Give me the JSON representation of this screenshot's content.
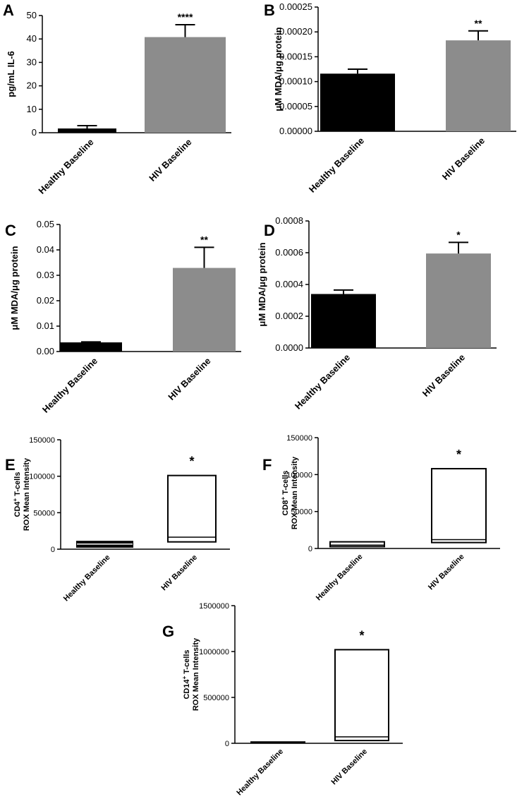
{
  "chart_data": [
    {
      "id": "A",
      "panel_letter": "A",
      "type": "bar",
      "categories": [
        "Healthy Baseline",
        "HIV Baseline"
      ],
      "values": [
        1.8,
        40.8
      ],
      "errors": [
        1.2,
        5.3
      ],
      "colors": [
        "#000000",
        "#8c8c8c"
      ],
      "ylabel": "pg/mL IL-6",
      "ylim": [
        0,
        50
      ],
      "ticks": [
        0,
        10,
        20,
        30,
        40,
        50
      ],
      "tick_labels": [
        "0",
        "10",
        "20",
        "30",
        "40",
        "50"
      ],
      "significance": [
        "",
        "****"
      ]
    },
    {
      "id": "B",
      "panel_letter": "B",
      "type": "bar",
      "categories": [
        "Healthy Baseline",
        "HIV Baseline"
      ],
      "values": [
        0.000116,
        0.000183
      ],
      "errors": [
        9e-06,
        1.9e-05
      ],
      "colors": [
        "#000000",
        "#8c8c8c"
      ],
      "ylabel": "μM MDA/μg protein",
      "ylim": [
        0,
        0.00025
      ],
      "ticks": [
        0,
        5e-05,
        0.0001,
        0.00015,
        0.0002,
        0.00025
      ],
      "tick_labels": [
        "0.00000",
        "0.00005",
        "0.00010",
        "0.00015",
        "0.00020",
        "0.00025"
      ],
      "significance": [
        "",
        "**"
      ]
    },
    {
      "id": "C",
      "panel_letter": "C",
      "type": "bar",
      "categories": [
        "Healthy Baseline",
        "HIV Baseline"
      ],
      "values": [
        0.0036,
        0.0329
      ],
      "errors": [
        0.0002,
        0.0081
      ],
      "colors": [
        "#000000",
        "#8c8c8c"
      ],
      "ylabel": "μM MDA/μg protein",
      "ylim": [
        0,
        0.05
      ],
      "ticks": [
        0,
        0.01,
        0.02,
        0.03,
        0.04,
        0.05
      ],
      "tick_labels": [
        "0.00",
        "0.01",
        "0.02",
        "0.03",
        "0.04",
        "0.05"
      ],
      "significance": [
        "",
        "**"
      ]
    },
    {
      "id": "D",
      "panel_letter": "D",
      "type": "bar",
      "categories": [
        "Healthy Baseline",
        "HIV Baseline"
      ],
      "values": [
        0.00034,
        0.000595
      ],
      "errors": [
        2.5e-05,
        7e-05
      ],
      "colors": [
        "#000000",
        "#8c8c8c"
      ],
      "ylabel": "μM MDA/μg protein",
      "ylim": [
        0,
        0.0008
      ],
      "ticks": [
        0,
        0.0002,
        0.0004,
        0.0006,
        0.0008
      ],
      "tick_labels": [
        "0.0000",
        "0.0002",
        "0.0004",
        "0.0006",
        "0.0008"
      ],
      "significance": [
        "",
        "*"
      ]
    },
    {
      "id": "E",
      "panel_letter": "E",
      "type": "box",
      "categories": [
        "Healthy Baseline",
        "HIV Baseline"
      ],
      "boxes": [
        {
          "min": 3000,
          "median": 7000,
          "max": 10500,
          "filled": true
        },
        {
          "min": 10000,
          "median": 16500,
          "max": 101000,
          "filled": false
        }
      ],
      "ylabel_line1": "CD4",
      "ylabel_sup": "+",
      "ylabel_line1_rest": " T-cells",
      "ylabel_line2": "ROX  Mean  Intensity",
      "ylim": [
        0,
        150000
      ],
      "ticks": [
        0,
        50000,
        100000,
        150000
      ],
      "tick_labels": [
        "0",
        "50000",
        "100000",
        "150000"
      ],
      "significance": [
        "",
        "*"
      ]
    },
    {
      "id": "F",
      "panel_letter": "F",
      "type": "box",
      "categories": [
        "Healthy Baseline",
        "HIV Baseline"
      ],
      "boxes": [
        {
          "min": 2500,
          "median": 4500,
          "max": 9000,
          "filled": false
        },
        {
          "min": 8000,
          "median": 12000,
          "max": 108000,
          "filled": false
        }
      ],
      "ylabel_line1": "CD8",
      "ylabel_sup": "+",
      "ylabel_line1_rest": " T-cells",
      "ylabel_line2": "ROX  Mean  Intensity",
      "ylim": [
        0,
        150000
      ],
      "ticks": [
        0,
        50000,
        100000,
        150000
      ],
      "tick_labels": [
        "0",
        "50000",
        "100000",
        "150000"
      ],
      "significance": [
        "",
        "*"
      ]
    },
    {
      "id": "G",
      "panel_letter": "G",
      "type": "box",
      "categories": [
        "Healthy Baseline",
        "HIV Baseline"
      ],
      "boxes": [
        {
          "min": 5000,
          "median": 9000,
          "max": 14000,
          "filled": false
        },
        {
          "min": 30000,
          "median": 70000,
          "max": 1020000,
          "filled": false
        }
      ],
      "ylabel_line1": "CD14",
      "ylabel_sup": "+",
      "ylabel_line1_rest": " T-cells",
      "ylabel_line2": "ROX  Mean  Intensity",
      "ylim": [
        0,
        1500000
      ],
      "ticks": [
        0,
        500000,
        1000000,
        1500000
      ],
      "tick_labels": [
        "0",
        "500000",
        "1000000",
        "1500000"
      ],
      "significance": [
        "",
        "*"
      ]
    }
  ]
}
